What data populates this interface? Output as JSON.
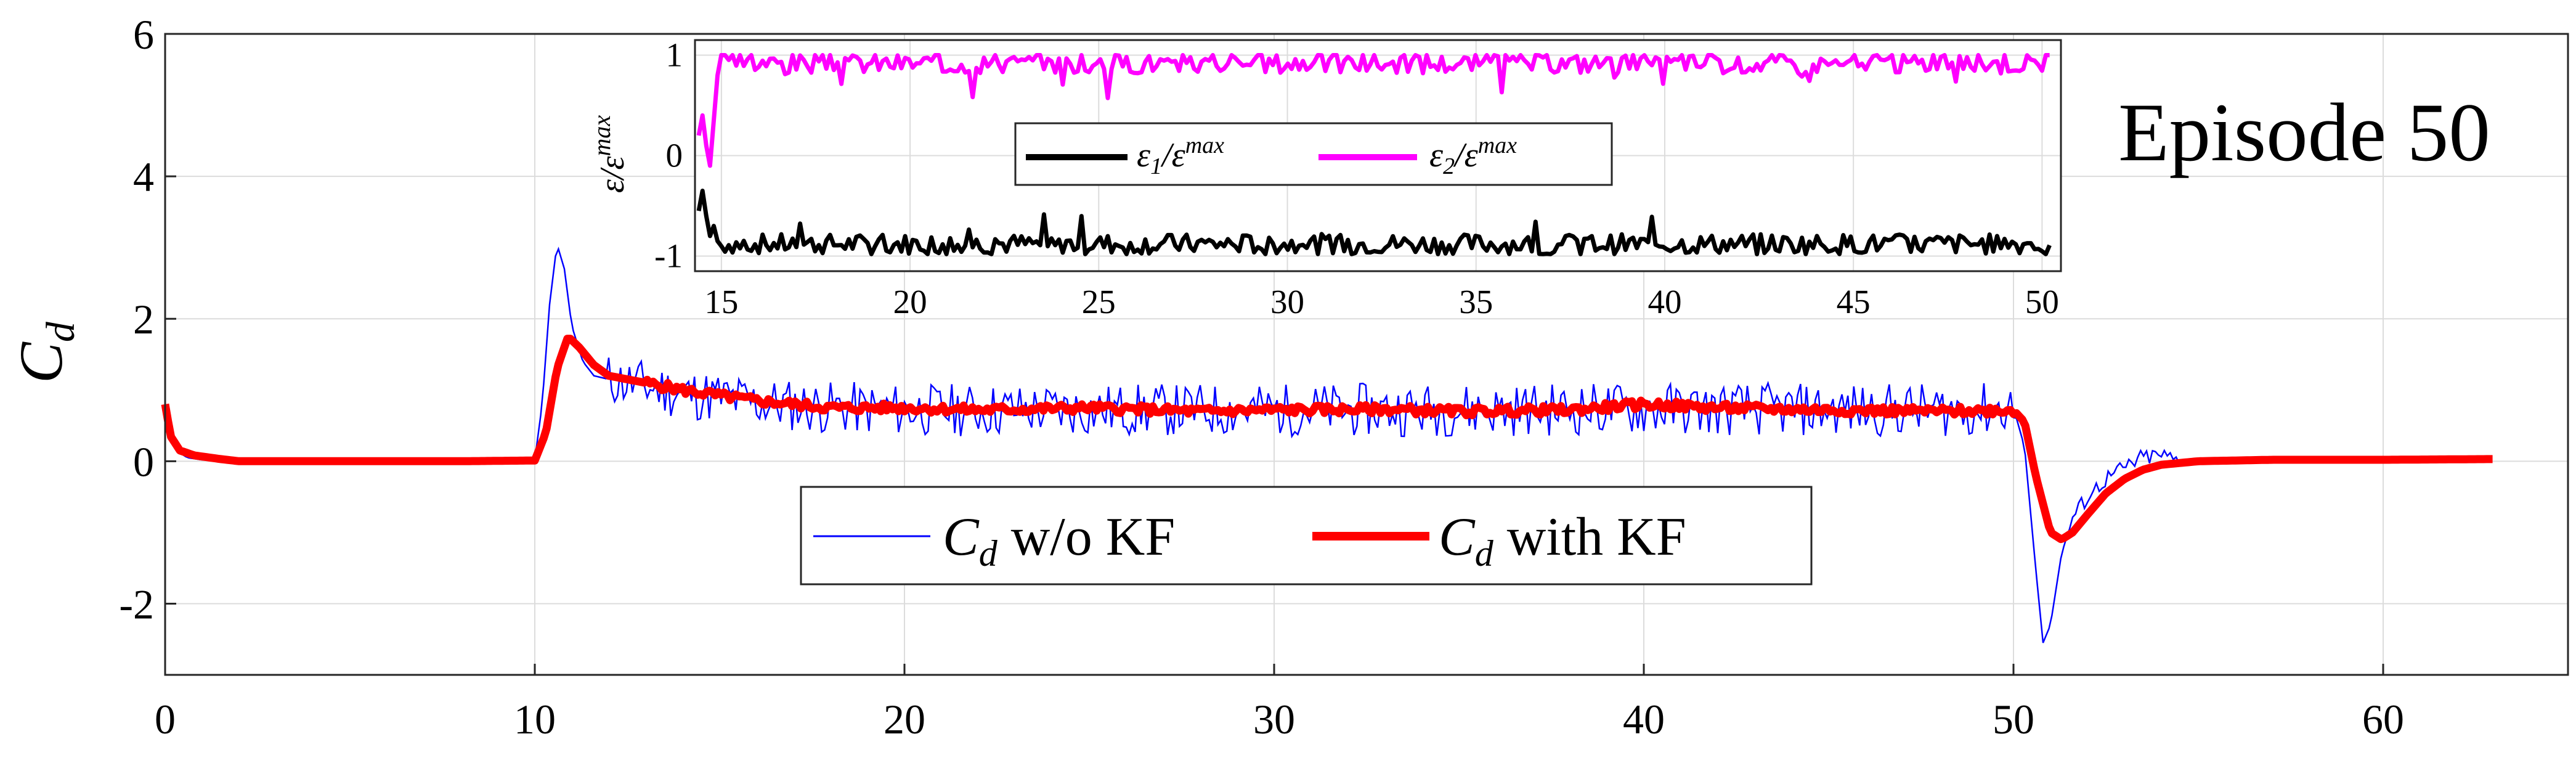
{
  "chart_data": [
    {
      "type": "line",
      "title": "Episode 50",
      "xlabel": "",
      "ylabel": "C_d",
      "xlim": [
        0,
        65
      ],
      "ylim": [
        -3,
        6
      ],
      "xticks": [
        0,
        10,
        20,
        30,
        40,
        50,
        60
      ],
      "xtick_labels": [
        "0",
        "10",
        "20",
        "30",
        "40",
        "50",
        "60"
      ],
      "yticks": [
        -2,
        0,
        2,
        4,
        6
      ],
      "ytick_labels": [
        "-2",
        "0",
        "2",
        "4",
        "6"
      ],
      "legend_position": "bottom-center",
      "series": [
        {
          "name": "C_d w/o KF",
          "legend_label_main": "C",
          "legend_label_sub": "d",
          "legend_label_rest": " w/o KF",
          "color": "#0000ff",
          "style": "thin",
          "points": [
            [
              0,
              0.8
            ],
            [
              0.3,
              0.15
            ],
            [
              0.6,
              0.05
            ],
            [
              1,
              0.02
            ],
            [
              2,
              0.0
            ],
            [
              4,
              0.0
            ],
            [
              6,
              0.0
            ],
            [
              8,
              0.0
            ],
            [
              10,
              0.02
            ],
            [
              10.2,
              0.8
            ],
            [
              10.4,
              2.2
            ],
            [
              10.6,
              3.05
            ],
            [
              10.8,
              2.7
            ],
            [
              11,
              1.9
            ],
            [
              11.3,
              1.4
            ],
            [
              11.6,
              1.2
            ],
            [
              12,
              1.15
            ],
            [
              12.5,
              1.1
            ],
            [
              13,
              1.05
            ],
            [
              14,
              0.95
            ],
            [
              15,
              0.9
            ],
            [
              16,
              0.82
            ],
            [
              18,
              0.75
            ],
            [
              20,
              0.72
            ],
            [
              25,
              0.72
            ],
            [
              30,
              0.72
            ],
            [
              35,
              0.72
            ],
            [
              40,
              0.74
            ],
            [
              45,
              0.72
            ],
            [
              49,
              0.72
            ],
            [
              50,
              0.75
            ],
            [
              50.3,
              0.2
            ],
            [
              50.6,
              -1.5
            ],
            [
              50.8,
              -2.55
            ],
            [
              51,
              -2.3
            ],
            [
              51.3,
              -1.3
            ],
            [
              51.6,
              -0.8
            ],
            [
              52,
              -0.5
            ],
            [
              52.5,
              -0.25
            ],
            [
              53,
              -0.1
            ],
            [
              53.5,
              0.05
            ],
            [
              54,
              0.08
            ],
            [
              54.5,
              0.0
            ],
            [
              55,
              0.02
            ]
          ]
        },
        {
          "name": "C_d with KF",
          "legend_label_main": "C",
          "legend_label_sub": "d",
          "legend_label_rest": " with KF",
          "color": "#ff0000",
          "style": "thick",
          "points": [
            [
              0,
              0.8
            ],
            [
              0.15,
              0.35
            ],
            [
              0.4,
              0.15
            ],
            [
              0.8,
              0.08
            ],
            [
              1.5,
              0.03
            ],
            [
              2,
              0.0
            ],
            [
              4,
              0.0
            ],
            [
              6,
              0.0
            ],
            [
              8,
              0.0
            ],
            [
              10,
              0.01
            ],
            [
              10.3,
              0.4
            ],
            [
              10.6,
              1.3
            ],
            [
              10.9,
              1.75
            ],
            [
              11.2,
              1.6
            ],
            [
              11.6,
              1.35
            ],
            [
              12,
              1.2
            ],
            [
              12.5,
              1.15
            ],
            [
              13,
              1.1
            ],
            [
              13.5,
              1.05
            ],
            [
              14,
              1.0
            ],
            [
              15,
              0.92
            ],
            [
              16,
              0.85
            ],
            [
              17,
              0.8
            ],
            [
              18,
              0.75
            ],
            [
              20,
              0.75
            ],
            [
              22,
              0.72
            ],
            [
              25,
              0.75
            ],
            [
              28,
              0.7
            ],
            [
              30,
              0.72
            ],
            [
              33,
              0.73
            ],
            [
              35,
              0.7
            ],
            [
              38,
              0.72
            ],
            [
              40,
              0.8
            ],
            [
              42,
              0.75
            ],
            [
              45,
              0.72
            ],
            [
              48,
              0.7
            ],
            [
              50,
              0.72
            ],
            [
              50.3,
              0.55
            ],
            [
              50.6,
              -0.2
            ],
            [
              51,
              -1.0
            ],
            [
              51.3,
              -1.1
            ],
            [
              51.6,
              -1.0
            ],
            [
              52,
              -0.75
            ],
            [
              52.5,
              -0.45
            ],
            [
              53,
              -0.25
            ],
            [
              53.5,
              -0.12
            ],
            [
              54,
              -0.05
            ],
            [
              55,
              0.0
            ],
            [
              57,
              0.02
            ],
            [
              60,
              0.02
            ],
            [
              63,
              0.03
            ]
          ]
        }
      ]
    },
    {
      "type": "line",
      "title": "",
      "xlabel": "",
      "ylabel": "ε/ε^max",
      "ylabel_main": "ε/ε",
      "ylabel_sup": "max",
      "xlim": [
        14.3,
        50.5
      ],
      "ylim": [
        -1.15,
        1.15
      ],
      "xticks": [
        15,
        20,
        25,
        30,
        35,
        40,
        45,
        50
      ],
      "xtick_labels": [
        "15",
        "20",
        "25",
        "30",
        "35",
        "40",
        "45",
        "50"
      ],
      "yticks": [
        -1,
        0,
        1
      ],
      "ytick_labels": [
        "-1",
        "0",
        "1"
      ],
      "legend_position": "center",
      "series": [
        {
          "name": "ε1/ε^max",
          "legend_label_main": "ε",
          "legend_label_sub": "1",
          "legend_label_mid": "/ε",
          "legend_label_sup": "max",
          "color": "#000000",
          "base": -0.88,
          "spread": 0.1,
          "start_values": [
            -0.55,
            -0.35,
            -0.6,
            -0.8,
            -0.7,
            -0.85,
            -0.9
          ],
          "seed": 7,
          "x_start": 14.4,
          "x_end": 50.2
        },
        {
          "name": "ε2/ε^max",
          "legend_label_main": "ε",
          "legend_label_sub": "2",
          "legend_label_mid": "/ε",
          "legend_label_sup": "max",
          "color": "#ff00ff",
          "base": 0.92,
          "spread": 0.1,
          "start_values": [
            0.2,
            0.4,
            0.1,
            -0.1,
            0.35,
            0.8,
            1.0
          ],
          "seed": 3,
          "x_start": 14.4,
          "x_end": 50.2
        }
      ]
    }
  ]
}
